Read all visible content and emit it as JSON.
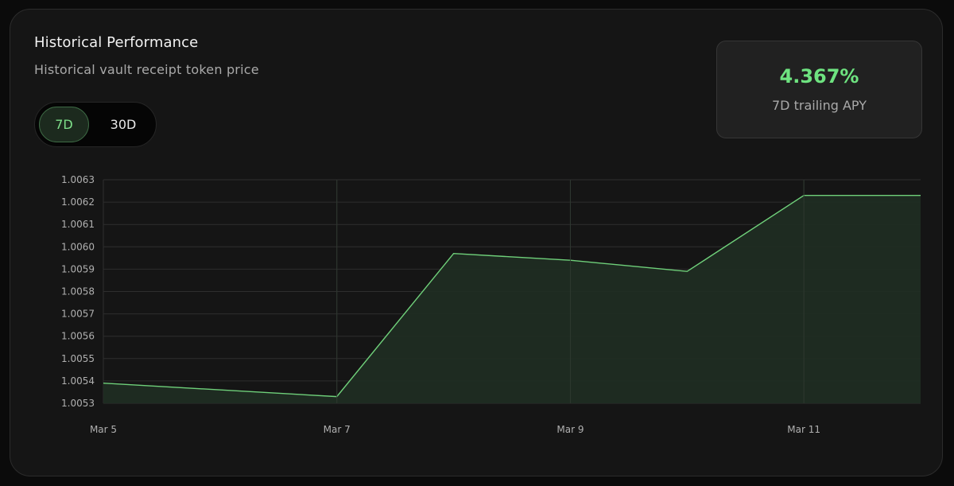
{
  "header": {
    "title": "Historical Performance",
    "subtitle": "Historical vault receipt token price"
  },
  "tabs": [
    {
      "label": "7D",
      "active": true
    },
    {
      "label": "30D",
      "active": false
    }
  ],
  "apy": {
    "value": "4.367%",
    "label": "7D trailing APY"
  },
  "colors": {
    "accent": "#6ee380",
    "line": "#6fd07a",
    "area": "#1f2d22",
    "grid": "#2e2e2e"
  },
  "chart_data": {
    "type": "area",
    "title": "",
    "xlabel": "",
    "ylabel": "",
    "x_ticks": [
      "Mar 5",
      "Mar 7",
      "Mar 9",
      "Mar 11"
    ],
    "x_tick_positions": [
      0,
      2,
      4,
      6
    ],
    "x": [
      0,
      2,
      3,
      4,
      5,
      6,
      7
    ],
    "values": [
      1.00539,
      1.00533,
      1.00597,
      1.00594,
      1.00589,
      1.00623,
      1.00623
    ],
    "y_ticks": [
      "1.0063",
      "1.0062",
      "1.0061",
      "1.0060",
      "1.0059",
      "1.0058",
      "1.0057",
      "1.0056",
      "1.0055",
      "1.0054",
      "1.0053"
    ],
    "ylim": [
      1.0053,
      1.0063
    ],
    "xlim": [
      0,
      7
    ],
    "grid": true,
    "legend": "none"
  }
}
